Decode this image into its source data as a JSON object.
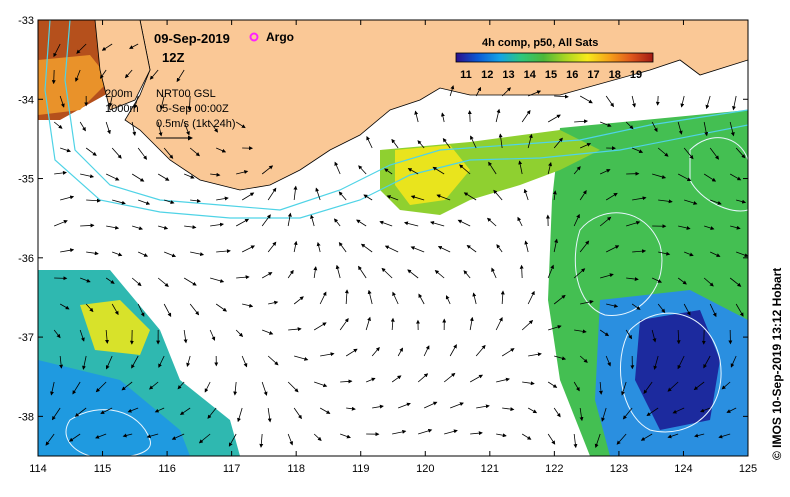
{
  "map": {
    "date_label": "09-Sep-2019",
    "time_label": "12Z",
    "argo_label": "Argo",
    "colorbar_title": "4h comp, p50, All Sats",
    "colorbar_ticks": [
      "11",
      "12",
      "13",
      "14",
      "15",
      "16",
      "17",
      "18",
      "19"
    ],
    "contour_200_label": "200m",
    "contour_1000_label": "1000m",
    "product_label": "NRT00 GSL",
    "analysis_time_label": "05-Sep 00:00Z",
    "scale_label": "0.5m/s (1kt 24h)",
    "credit": "© IMOS 10-Sep-2019 13:12 Hobart",
    "x_ticks": [
      "114",
      "115",
      "116",
      "117",
      "118",
      "119",
      "120",
      "121",
      "122",
      "123",
      "124",
      "125"
    ],
    "y_ticks": [
      "-33",
      "-34",
      "-35",
      "-36",
      "-37",
      "-38"
    ],
    "lon_range": [
      114,
      125
    ],
    "lat_range": [
      -38.5,
      -33
    ],
    "colors": {
      "land": "#fac896",
      "bathy_contour": "#4fd3e6",
      "ssh_contour": "#e8f6ff",
      "argo_marker": "#ff22ff"
    },
    "colorbar_colors": [
      "#2b0f8c",
      "#0b5ad6",
      "#14a3e6",
      "#2fc77c",
      "#4db83a",
      "#a9d622",
      "#f7ea1b",
      "#f6a21a",
      "#e0571c",
      "#a31a14"
    ]
  }
}
